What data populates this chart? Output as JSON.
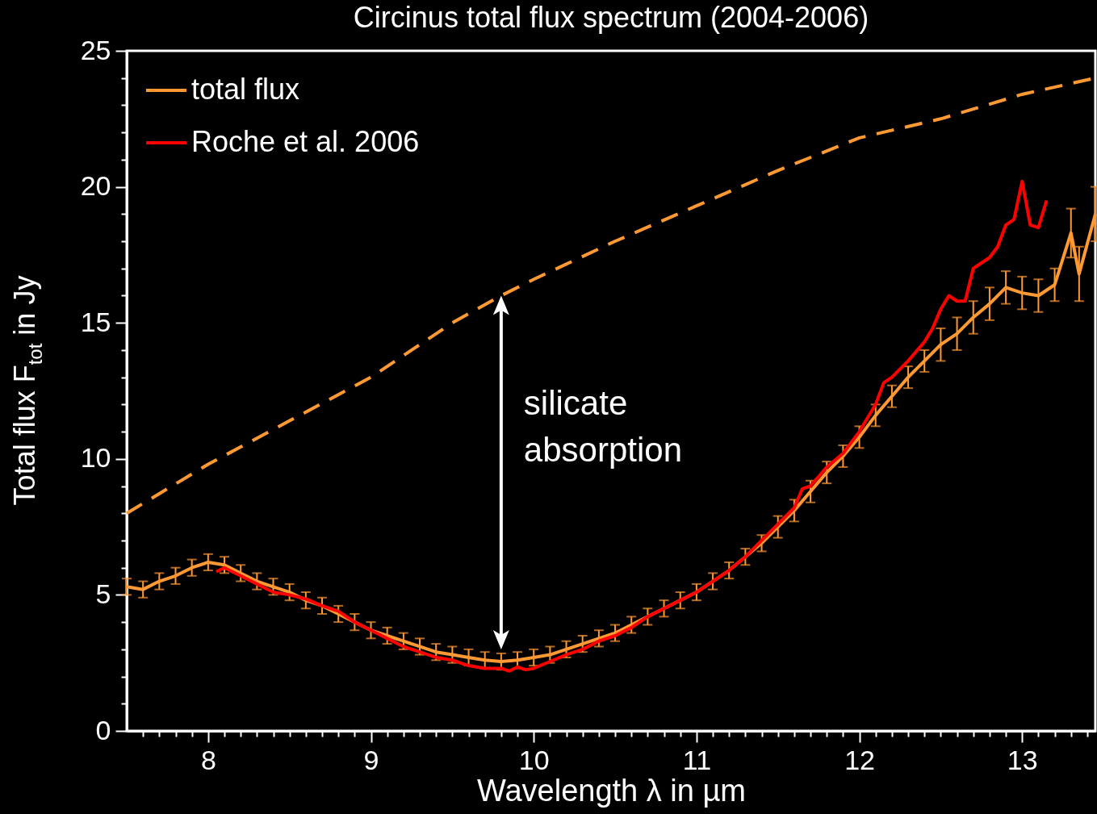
{
  "chart_data": {
    "type": "line",
    "title": "Circinus total flux spectrum (2004-2006)",
    "xlabel": "Wavelength λ in µm",
    "ylabel": "Total flux F$_{tot}$ in Jy",
    "xlim": [
      7.5,
      13.45
    ],
    "ylim": [
      0,
      25
    ],
    "xticks": [
      {
        "value": 7.6,
        "label": null
      },
      {
        "value": 7.7,
        "label": null
      },
      {
        "value": 7.8,
        "label": null
      },
      {
        "value": 7.9,
        "label": null
      },
      8,
      {
        "value": 8.1,
        "label": null
      },
      {
        "value": 8.2,
        "label": null
      },
      {
        "value": 8.3,
        "label": null
      },
      {
        "value": 8.4,
        "label": null
      },
      {
        "value": 8.5,
        "label": null
      },
      {
        "value": 8.6,
        "label": null
      },
      {
        "value": 8.7,
        "label": null
      },
      {
        "value": 8.8,
        "label": null
      },
      {
        "value": 8.9,
        "label": null
      },
      9,
      {
        "value": 9.1,
        "label": null
      },
      {
        "value": 9.2,
        "label": null
      },
      {
        "value": 9.3,
        "label": null
      },
      {
        "value": 9.4,
        "label": null
      },
      {
        "value": 9.5,
        "label": null
      },
      {
        "value": 9.6,
        "label": null
      },
      {
        "value": 9.7,
        "label": null
      },
      {
        "value": 9.8,
        "label": null
      },
      {
        "value": 9.9,
        "label": null
      },
      10,
      {
        "value": 10.1,
        "label": null
      },
      {
        "value": 10.2,
        "label": null
      },
      {
        "value": 10.3,
        "label": null
      },
      {
        "value": 10.4,
        "label": null
      },
      {
        "value": 10.5,
        "label": null
      },
      {
        "value": 10.6,
        "label": null
      },
      {
        "value": 10.7,
        "label": null
      },
      {
        "value": 10.8,
        "label": null
      },
      {
        "value": 10.9,
        "label": null
      },
      11,
      {
        "value": 11.1,
        "label": null
      },
      {
        "value": 11.2,
        "label": null
      },
      {
        "value": 11.3,
        "label": null
      },
      {
        "value": 11.4,
        "label": null
      },
      {
        "value": 11.5,
        "label": null
      },
      {
        "value": 11.6,
        "label": null
      },
      {
        "value": 11.7,
        "label": null
      },
      {
        "value": 11.8,
        "label": null
      },
      {
        "value": 11.9,
        "label": null
      },
      12,
      {
        "value": 12.1,
        "label": null
      },
      {
        "value": 12.2,
        "label": null
      },
      {
        "value": 12.3,
        "label": null
      },
      {
        "value": 12.4,
        "label": null
      },
      {
        "value": 12.5,
        "label": null
      },
      {
        "value": 12.6,
        "label": null
      },
      {
        "value": 12.7,
        "label": null
      },
      {
        "value": 12.8,
        "label": null
      },
      {
        "value": 12.9,
        "label": null
      },
      13,
      {
        "value": 13.1,
        "label": null
      },
      {
        "value": 13.2,
        "label": null
      },
      {
        "value": 13.3,
        "label": null
      },
      {
        "value": 13.4,
        "label": null
      }
    ],
    "yticks": [
      0,
      {
        "value": 1,
        "label": null
      },
      {
        "value": 2,
        "label": null
      },
      {
        "value": 3,
        "label": null
      },
      {
        "value": 4,
        "label": null
      },
      5,
      {
        "value": 6,
        "label": null
      },
      {
        "value": 7,
        "label": null
      },
      {
        "value": 8,
        "label": null
      },
      {
        "value": 9,
        "label": null
      },
      10,
      {
        "value": 11,
        "label": null
      },
      {
        "value": 12,
        "label": null
      },
      {
        "value": 13,
        "label": null
      },
      {
        "value": 14,
        "label": null
      },
      15,
      {
        "value": 16,
        "label": null
      },
      {
        "value": 17,
        "label": null
      },
      {
        "value": 18,
        "label": null
      },
      {
        "value": 19,
        "label": null
      },
      20,
      {
        "value": 21,
        "label": null
      },
      {
        "value": 22,
        "label": null
      },
      {
        "value": 23,
        "label": null
      },
      {
        "value": 24,
        "label": null
      },
      25
    ],
    "legend": "top left",
    "annotations": [
      "silicate absorption"
    ],
    "series": [
      {
        "name": "total flux",
        "color": "#ff9933",
        "x": [
          7.5,
          7.6,
          7.7,
          7.8,
          7.9,
          8.0,
          8.1,
          8.2,
          8.3,
          8.4,
          8.5,
          8.6,
          8.7,
          8.8,
          8.9,
          9.0,
          9.1,
          9.2,
          9.3,
          9.4,
          9.5,
          9.6,
          9.7,
          9.8,
          9.9,
          10.0,
          10.1,
          10.2,
          10.3,
          10.4,
          10.5,
          10.6,
          10.7,
          10.8,
          10.9,
          11.0,
          11.1,
          11.2,
          11.3,
          11.4,
          11.5,
          11.6,
          11.7,
          11.8,
          11.9,
          12.0,
          12.1,
          12.2,
          12.3,
          12.4,
          12.5,
          12.6,
          12.7,
          12.8,
          12.9,
          13.0,
          13.1,
          13.2,
          13.3,
          13.35,
          13.45
        ],
        "values": [
          5.3,
          5.2,
          5.5,
          5.7,
          6.0,
          6.2,
          6.1,
          5.8,
          5.5,
          5.3,
          5.1,
          4.8,
          4.6,
          4.3,
          4.0,
          3.7,
          3.5,
          3.3,
          3.1,
          2.9,
          2.8,
          2.7,
          2.6,
          2.55,
          2.6,
          2.7,
          2.8,
          3.0,
          3.2,
          3.4,
          3.6,
          3.9,
          4.2,
          4.5,
          4.8,
          5.1,
          5.5,
          5.9,
          6.4,
          6.9,
          7.5,
          8.1,
          8.8,
          9.5,
          10.1,
          10.8,
          11.6,
          12.3,
          13.0,
          13.6,
          14.2,
          14.6,
          15.2,
          15.7,
          16.3,
          16.1,
          16.0,
          16.4,
          18.3,
          16.8,
          19.0
        ],
        "errors": [
          0.3,
          0.3,
          0.3,
          0.3,
          0.3,
          0.3,
          0.3,
          0.3,
          0.3,
          0.3,
          0.3,
          0.3,
          0.3,
          0.3,
          0.3,
          0.3,
          0.3,
          0.3,
          0.3,
          0.3,
          0.3,
          0.3,
          0.3,
          0.3,
          0.3,
          0.3,
          0.3,
          0.3,
          0.3,
          0.3,
          0.3,
          0.3,
          0.3,
          0.3,
          0.3,
          0.3,
          0.3,
          0.3,
          0.3,
          0.3,
          0.4,
          0.4,
          0.4,
          0.4,
          0.4,
          0.4,
          0.4,
          0.4,
          0.4,
          0.4,
          0.6,
          0.6,
          0.6,
          0.6,
          0.6,
          0.6,
          0.6,
          0.6,
          0.9,
          1.0,
          1.0
        ]
      },
      {
        "name": "Roche et al. 2006",
        "color": "#ff0000",
        "x": [
          8.05,
          8.1,
          8.2,
          8.3,
          8.4,
          8.5,
          8.6,
          8.7,
          8.8,
          8.9,
          9.0,
          9.1,
          9.2,
          9.3,
          9.4,
          9.5,
          9.6,
          9.7,
          9.8,
          9.85,
          9.9,
          9.95,
          10.0,
          10.1,
          10.2,
          10.3,
          10.4,
          10.5,
          10.6,
          10.7,
          10.8,
          10.9,
          11.0,
          11.1,
          11.2,
          11.3,
          11.4,
          11.5,
          11.6,
          11.65,
          11.7,
          11.8,
          11.9,
          12.0,
          12.1,
          12.15,
          12.2,
          12.3,
          12.4,
          12.45,
          12.5,
          12.55,
          12.6,
          12.65,
          12.7,
          12.8,
          12.85,
          12.9,
          12.95,
          13.0,
          13.05,
          13.1,
          13.15
        ],
        "values": [
          5.85,
          6.0,
          5.7,
          5.4,
          5.1,
          5.0,
          4.85,
          4.6,
          4.4,
          4.0,
          3.7,
          3.4,
          3.1,
          2.9,
          2.7,
          2.6,
          2.4,
          2.3,
          2.3,
          2.2,
          2.35,
          2.25,
          2.3,
          2.55,
          2.8,
          3.0,
          3.3,
          3.5,
          3.8,
          4.2,
          4.5,
          4.8,
          5.1,
          5.5,
          5.9,
          6.4,
          7.0,
          7.6,
          8.2,
          8.9,
          9.0,
          9.7,
          10.2,
          11.0,
          12.0,
          12.8,
          13.0,
          13.6,
          14.3,
          14.8,
          15.5,
          16.0,
          15.8,
          15.8,
          17.0,
          17.4,
          17.8,
          18.6,
          18.8,
          20.2,
          18.6,
          18.5,
          19.5
        ]
      },
      {
        "color": "#ff9933",
        "line_style": "dashed",
        "x": [
          7.5,
          8,
          8.5,
          9,
          9.5,
          9.8,
          10,
          10.5,
          11,
          11.5,
          12,
          12.5,
          13,
          13.45
        ],
        "values": [
          8.0,
          9.8,
          11.4,
          13.0,
          15.0,
          16.0,
          16.6,
          18.0,
          19.3,
          20.6,
          21.8,
          22.5,
          23.4,
          24.0
        ]
      }
    ]
  }
}
